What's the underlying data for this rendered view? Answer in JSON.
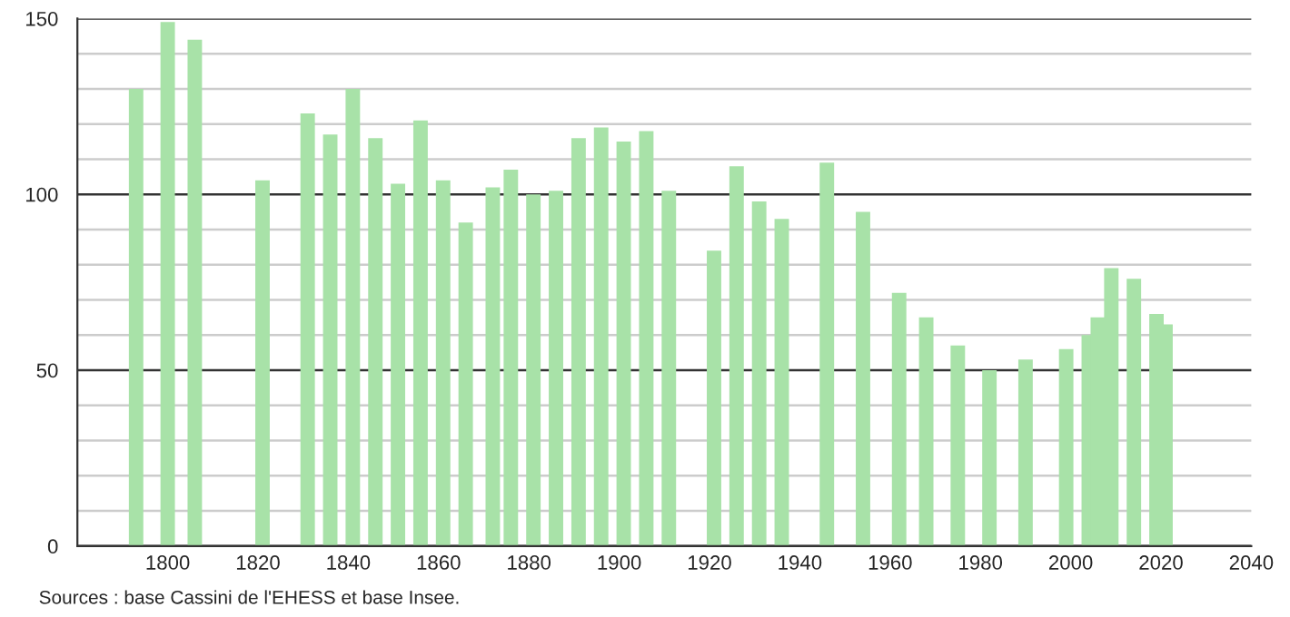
{
  "chart_data": {
    "type": "bar",
    "color": "#a8e2a8",
    "x": [
      1793,
      1800,
      1806,
      1821,
      1831,
      1836,
      1841,
      1846,
      1851,
      1856,
      1861,
      1866,
      1872,
      1876,
      1881,
      1886,
      1891,
      1896,
      1901,
      1906,
      1911,
      1921,
      1926,
      1931,
      1936,
      1946,
      1954,
      1962,
      1968,
      1975,
      1982,
      1990,
      1999,
      2004,
      2006,
      2009,
      2014,
      2019,
      2021
    ],
    "values": [
      130,
      149,
      144,
      104,
      123,
      117,
      130,
      116,
      103,
      121,
      104,
      92,
      102,
      107,
      100,
      101,
      116,
      119,
      115,
      118,
      101,
      84,
      108,
      98,
      93,
      109,
      95,
      72,
      65,
      57,
      50,
      53,
      56,
      60,
      65,
      79,
      76,
      66,
      63
    ],
    "xlim": [
      1780,
      2040
    ],
    "xticks": [
      1800,
      1820,
      1840,
      1860,
      1880,
      1900,
      1920,
      1940,
      1960,
      1980,
      2000,
      2020,
      2040
    ],
    "ylim": [
      0,
      150
    ],
    "yticks": [
      0,
      {
        "value": 10,
        "label": null
      },
      {
        "value": 20,
        "label": null
      },
      {
        "value": 30,
        "label": null
      },
      {
        "value": 40,
        "label": null
      },
      50,
      {
        "value": 60,
        "label": null
      },
      {
        "value": 70,
        "label": null
      },
      {
        "value": 80,
        "label": null
      },
      {
        "value": 90,
        "label": null
      },
      100,
      {
        "value": 110,
        "label": null
      },
      {
        "value": 120,
        "label": null
      },
      {
        "value": 130,
        "label": null
      },
      {
        "value": 140,
        "label": null
      },
      150
    ],
    "grid": "y",
    "annotations": [
      "Sources : base Cassini de l'EHESS et base Insee."
    ]
  }
}
